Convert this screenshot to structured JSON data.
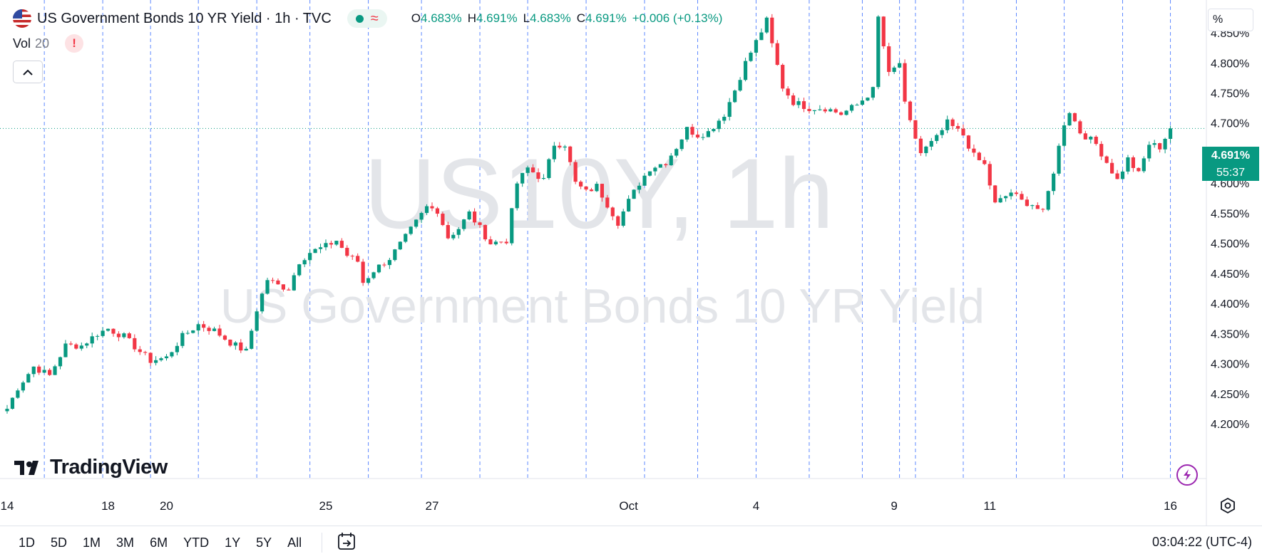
{
  "header": {
    "title": "US Government Bonds 10 YR Yield · 1h · TVC",
    "ohlc": [
      {
        "key": "O",
        "value": "4.683%"
      },
      {
        "key": "H",
        "value": "4.691%"
      },
      {
        "key": "L",
        "value": "4.683%"
      },
      {
        "key": "C",
        "value": "4.691%"
      }
    ],
    "change": "+0.006 (+0.13%)"
  },
  "volume": {
    "label": "Vol",
    "value": "20",
    "warning": "!"
  },
  "scale_button": "%",
  "watermark": {
    "line1": "US10Y, 1h",
    "line2": "US Government Bonds 10 YR Yield"
  },
  "price_tag": {
    "symbol": "US10Y",
    "value": "4.691%",
    "countdown": "55:37"
  },
  "logo": "TradingView",
  "range_buttons": [
    "1D",
    "5D",
    "1M",
    "3M",
    "6M",
    "YTD",
    "1Y",
    "5Y",
    "All"
  ],
  "clock": "03:04:22 (UTC-4)",
  "colors": {
    "up": "#089981",
    "down": "#f23645",
    "grid": "#2962ff"
  },
  "chart_data": {
    "type": "candlestick",
    "title": "US Government Bonds 10 YR Yield",
    "ylim": [
      4.18,
      4.895
    ],
    "ytick_labels": [
      "4.200%",
      "4.250%",
      "4.300%",
      "4.350%",
      "4.400%",
      "4.450%",
      "4.500%",
      "4.550%",
      "4.600%",
      "4.650%",
      "4.700%",
      "4.750%",
      "4.800%",
      "4.850%"
    ],
    "yticks": [
      4.2,
      4.25,
      4.3,
      4.35,
      4.4,
      4.45,
      4.5,
      4.55,
      4.6,
      4.65,
      4.7,
      4.75,
      4.8,
      4.85
    ],
    "xtick_labels": [
      "14",
      "18",
      "20",
      "25",
      "27",
      "Oct",
      "4",
      "9",
      "11",
      "16"
    ],
    "xtick_index": [
      0,
      19,
      30,
      60,
      80,
      117,
      141,
      167,
      185,
      219
    ],
    "last_value": 4.691,
    "separator_index": [
      7,
      18,
      27,
      36,
      47,
      57,
      68,
      78,
      89,
      98,
      109,
      120,
      130,
      141,
      151,
      161,
      168,
      171,
      180,
      190,
      199,
      210,
      219
    ],
    "points": [
      [
        0,
        4.225
      ],
      [
        2,
        4.26
      ],
      [
        5,
        4.295
      ],
      [
        8,
        4.28
      ],
      [
        11,
        4.33
      ],
      [
        14,
        4.33
      ],
      [
        17,
        4.35
      ],
      [
        19,
        4.358
      ],
      [
        22,
        4.345
      ],
      [
        25,
        4.32
      ],
      [
        27,
        4.305
      ],
      [
        30,
        4.31
      ],
      [
        33,
        4.345
      ],
      [
        36,
        4.365
      ],
      [
        39,
        4.355
      ],
      [
        42,
        4.335
      ],
      [
        45,
        4.32
      ],
      [
        47,
        4.39
      ],
      [
        49,
        4.44
      ],
      [
        51,
        4.43
      ],
      [
        53,
        4.425
      ],
      [
        55,
        4.47
      ],
      [
        57,
        4.485
      ],
      [
        60,
        4.495
      ],
      [
        62,
        4.505
      ],
      [
        64,
        4.48
      ],
      [
        66,
        4.47
      ],
      [
        67,
        4.435
      ],
      [
        69,
        4.455
      ],
      [
        72,
        4.475
      ],
      [
        75,
        4.51
      ],
      [
        77,
        4.535
      ],
      [
        79,
        4.56
      ],
      [
        81,
        4.555
      ],
      [
        83,
        4.51
      ],
      [
        85,
        4.525
      ],
      [
        87,
        4.55
      ],
      [
        89,
        4.525
      ],
      [
        91,
        4.5
      ],
      [
        94,
        4.505
      ],
      [
        96,
        4.6
      ],
      [
        98,
        4.625
      ],
      [
        101,
        4.605
      ],
      [
        103,
        4.665
      ],
      [
        105,
        4.665
      ],
      [
        107,
        4.6
      ],
      [
        109,
        4.585
      ],
      [
        111,
        4.595
      ],
      [
        113,
        4.565
      ],
      [
        115,
        4.535
      ],
      [
        117,
        4.57
      ],
      [
        119,
        4.6
      ],
      [
        121,
        4.625
      ],
      [
        124,
        4.635
      ],
      [
        126,
        4.66
      ],
      [
        128,
        4.69
      ],
      [
        130,
        4.68
      ],
      [
        132,
        4.685
      ],
      [
        135,
        4.715
      ],
      [
        137,
        4.755
      ],
      [
        139,
        4.8
      ],
      [
        141,
        4.835
      ],
      [
        143,
        4.87
      ],
      [
        144,
        4.83
      ],
      [
        146,
        4.76
      ],
      [
        148,
        4.735
      ],
      [
        151,
        4.725
      ],
      [
        154,
        4.725
      ],
      [
        157,
        4.715
      ],
      [
        160,
        4.73
      ],
      [
        163,
        4.755
      ],
      [
        164,
        4.875
      ],
      [
        166,
        4.78
      ],
      [
        168,
        4.8
      ],
      [
        169,
        4.73
      ],
      [
        170,
        4.7
      ],
      [
        172,
        4.65
      ],
      [
        175,
        4.675
      ],
      [
        177,
        4.7
      ],
      [
        180,
        4.68
      ],
      [
        182,
        4.645
      ],
      [
        184,
        4.63
      ],
      [
        186,
        4.565
      ],
      [
        189,
        4.585
      ],
      [
        191,
        4.57
      ],
      [
        193,
        4.565
      ],
      [
        195,
        4.55
      ],
      [
        197,
        4.62
      ],
      [
        199,
        4.7
      ],
      [
        200,
        4.72
      ],
      [
        202,
        4.685
      ],
      [
        205,
        4.665
      ],
      [
        207,
        4.635
      ],
      [
        209,
        4.605
      ],
      [
        211,
        4.64
      ],
      [
        213,
        4.615
      ],
      [
        215,
        4.665
      ],
      [
        217,
        4.66
      ],
      [
        219,
        4.691
      ]
    ]
  }
}
